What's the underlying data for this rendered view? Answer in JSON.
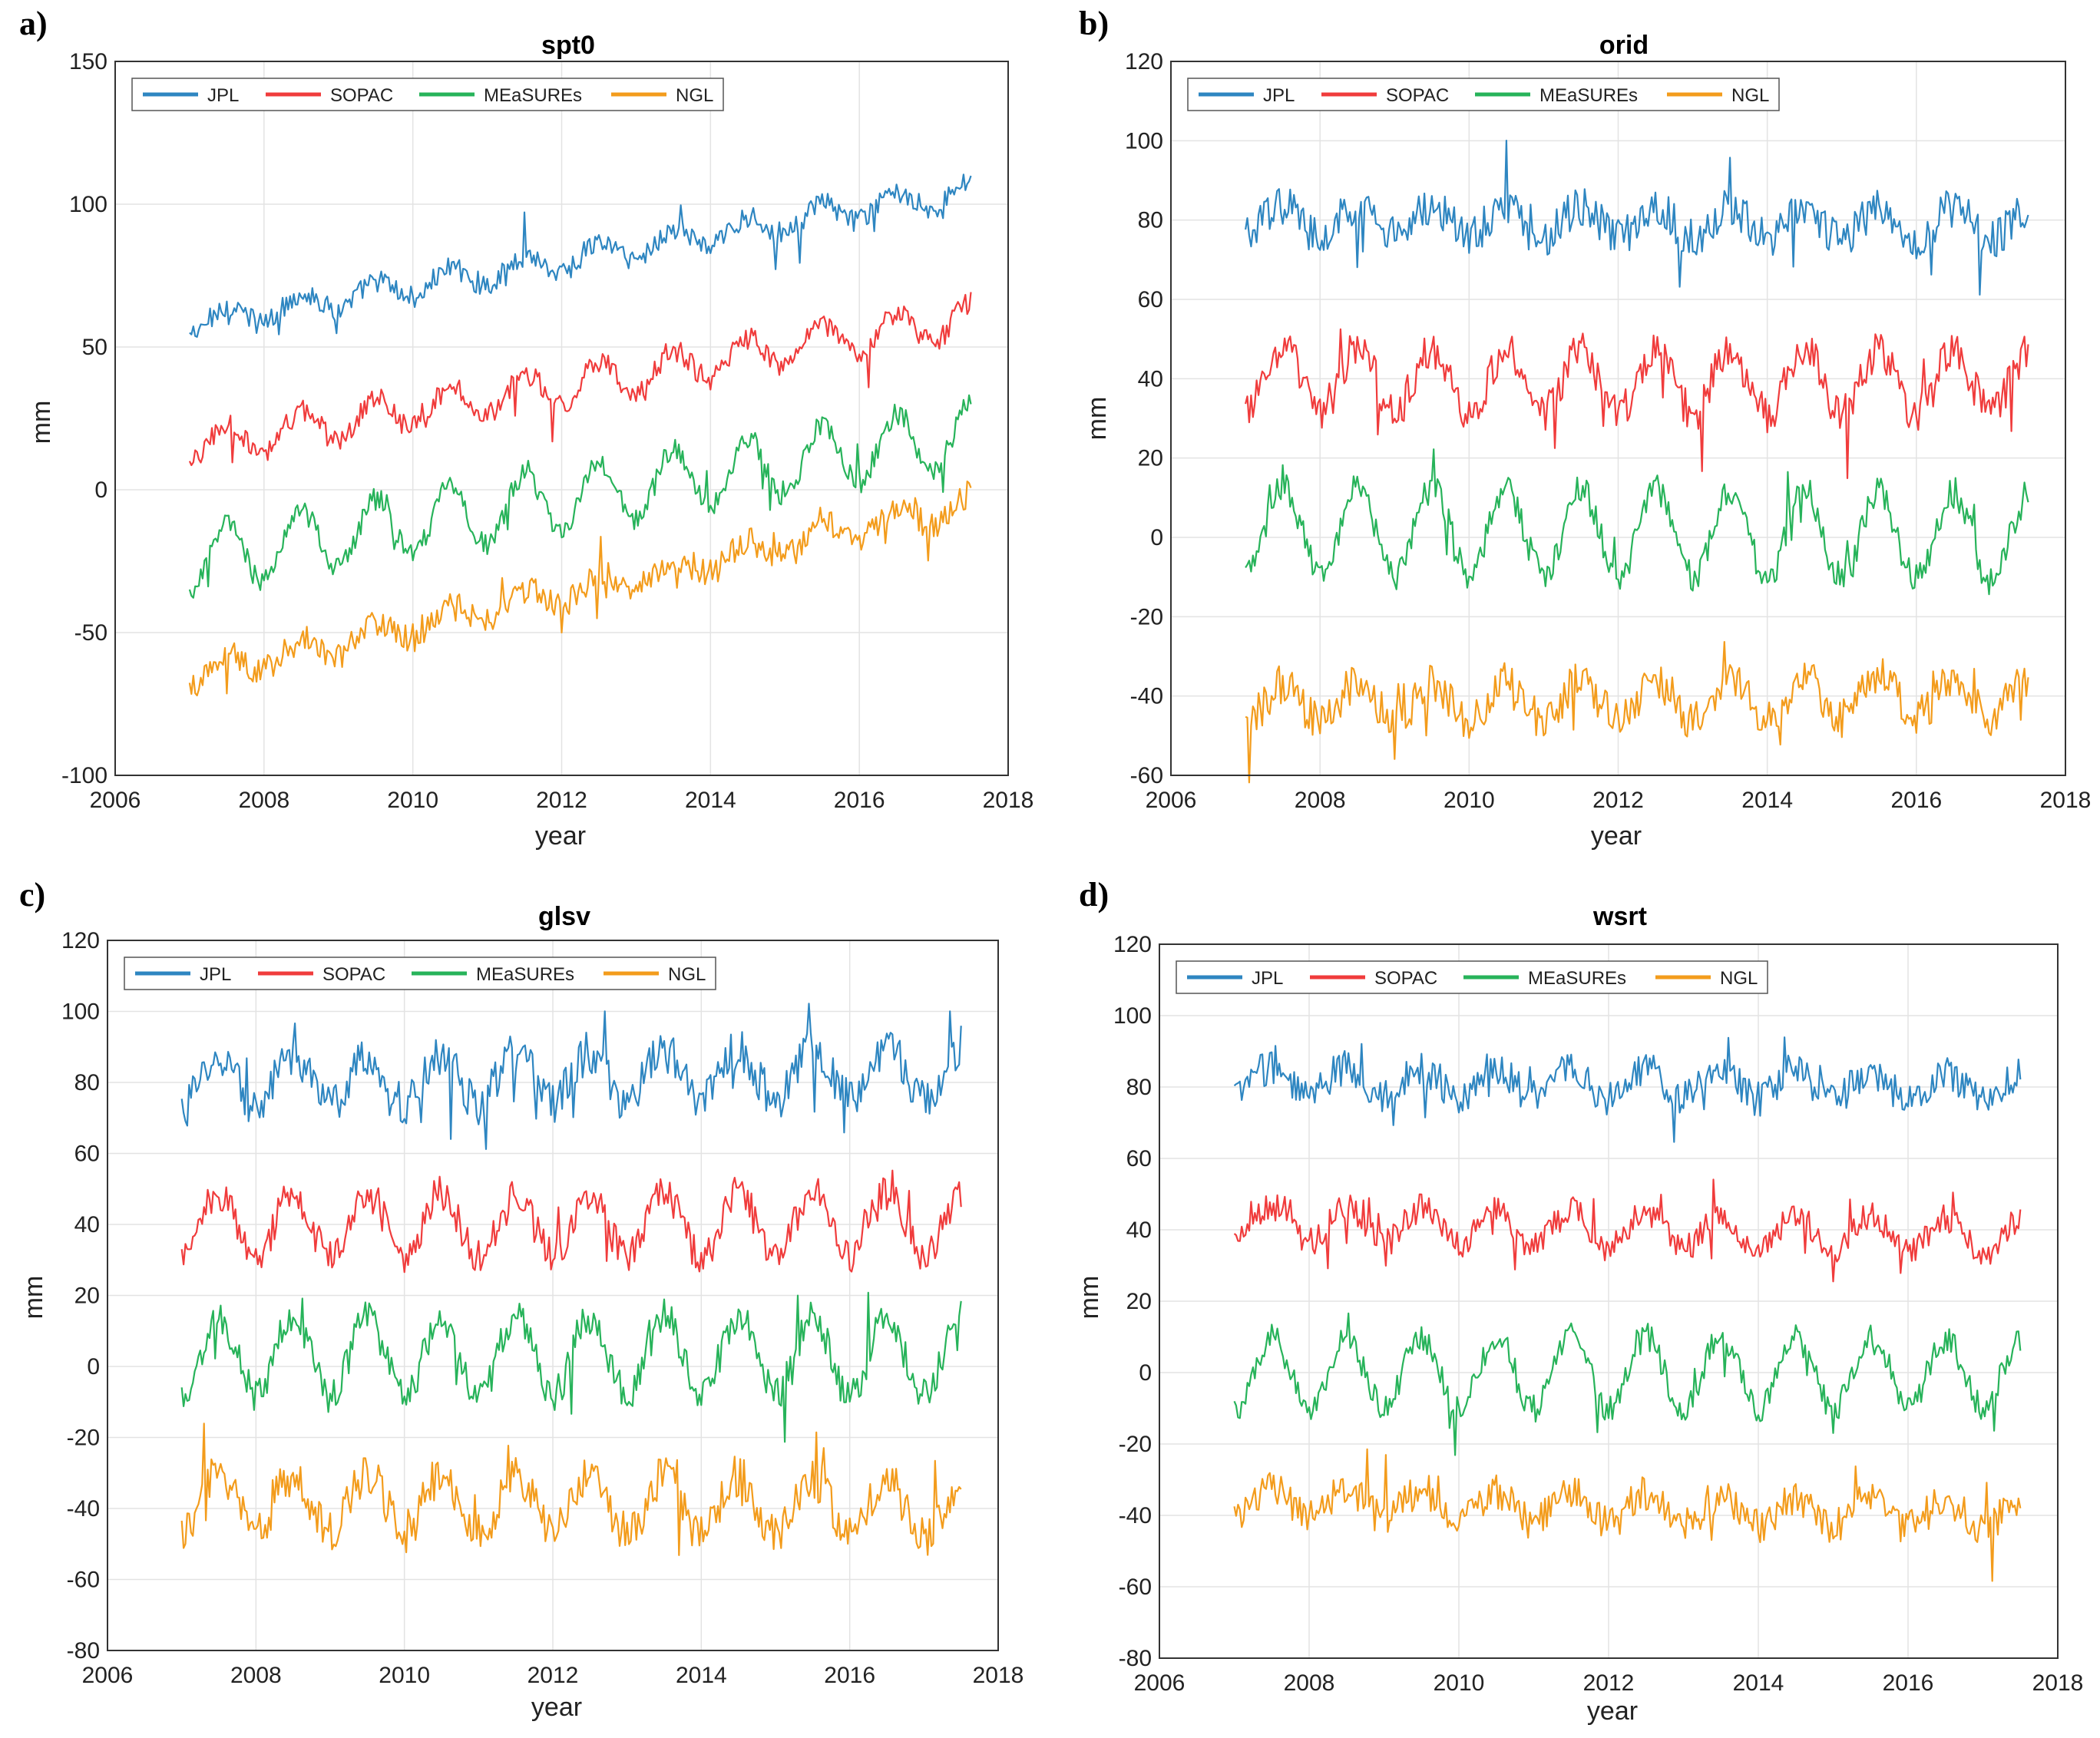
{
  "figure": {
    "colors": {
      "JPL": "#2e86c1",
      "SOPAC": "#f03c3c",
      "MEaSUREs": "#27b35a",
      "NGL": "#f39c1c"
    },
    "legend": [
      "JPL",
      "SOPAC",
      "MEaSUREs",
      "NGL"
    ]
  },
  "chart_data": [
    {
      "panel": "a)",
      "type": "line",
      "title": "spt0",
      "xlabel": "year",
      "ylabel": "mm",
      "xlim": [
        2006,
        2018
      ],
      "ylim": [
        -100,
        150
      ],
      "xticks": [
        "2006",
        "2008",
        "2010",
        "2012",
        "2014",
        "2016",
        "2018"
      ],
      "yticks": [
        "-100",
        "-50",
        "0",
        "50",
        "100",
        "150"
      ],
      "grid": true,
      "legend_position": "top-left",
      "x_range": [
        2007.0,
        2017.5
      ],
      "series": [
        {
          "name": "JPL",
          "start": 58,
          "end": 105,
          "amplitude": 4,
          "noise": 4
        },
        {
          "name": "SOPAC",
          "start": 15,
          "end": 60,
          "amplitude": 6,
          "noise": 4
        },
        {
          "name": "MEaSUREs",
          "start": -25,
          "end": 20,
          "amplitude": 11,
          "noise": 4
        },
        {
          "name": "NGL",
          "start": -65,
          "end": -5,
          "amplitude": 4,
          "noise": 5
        }
      ]
    },
    {
      "panel": "b)",
      "type": "line",
      "title": "orid",
      "xlabel": "year",
      "ylabel": "mm",
      "xlim": [
        2006,
        2018
      ],
      "ylim": [
        -60,
        120
      ],
      "xticks": [
        "2006",
        "2008",
        "2010",
        "2012",
        "2014",
        "2016",
        "2018"
      ],
      "yticks": [
        "-60",
        "-40",
        "-20",
        "0",
        "20",
        "40",
        "60",
        "80",
        "100",
        "120"
      ],
      "grid": true,
      "legend_position": "top-left",
      "x_range": [
        2007.0,
        2017.5
      ],
      "series": [
        {
          "name": "JPL",
          "start": 80,
          "end": 79,
          "amplitude": 4,
          "noise": 5
        },
        {
          "name": "SOPAC",
          "start": 40,
          "end": 39,
          "amplitude": 8,
          "noise": 5
        },
        {
          "name": "MEaSUREs",
          "start": 2,
          "end": 0,
          "amplitude": 11,
          "noise": 4
        },
        {
          "name": "NGL",
          "start": -42,
          "end": -40,
          "amplitude": 5,
          "noise": 5
        }
      ]
    },
    {
      "panel": "c)",
      "type": "line",
      "title": "glsv",
      "xlabel": "year",
      "ylabel": "mm",
      "xlim": [
        2006,
        2018
      ],
      "ylim": [
        -80,
        120
      ],
      "xticks": [
        "2006",
        "2008",
        "2010",
        "2012",
        "2014",
        "2016",
        "2018"
      ],
      "yticks": [
        "-80",
        "-60",
        "-40",
        "-20",
        "0",
        "20",
        "40",
        "60",
        "80",
        "100",
        "120"
      ],
      "grid": true,
      "legend_position": "top-left",
      "x_range": [
        2007.0,
        2017.5
      ],
      "series": [
        {
          "name": "JPL",
          "start": 80,
          "end": 83,
          "amplitude": 7,
          "noise": 6
        },
        {
          "name": "SOPAC",
          "start": 40,
          "end": 40,
          "amplitude": 9,
          "noise": 5
        },
        {
          "name": "MEaSUREs",
          "start": 3,
          "end": 3,
          "amplitude": 11,
          "noise": 5
        },
        {
          "name": "NGL",
          "start": -38,
          "end": -40,
          "amplitude": 8,
          "noise": 6
        }
      ]
    },
    {
      "panel": "d)",
      "type": "line",
      "title": "wsrt",
      "xlabel": "year",
      "ylabel": "mm",
      "xlim": [
        2006,
        2018
      ],
      "ylim": [
        -80,
        120
      ],
      "xticks": [
        "2006",
        "2008",
        "2010",
        "2012",
        "2014",
        "2016",
        "2018"
      ],
      "yticks": [
        "-80",
        "-60",
        "-40",
        "-20",
        "0",
        "20",
        "40",
        "60",
        "80",
        "100",
        "120"
      ],
      "grid": true,
      "legend_position": "top-left",
      "x_range": [
        2007.0,
        2017.5
      ],
      "series": [
        {
          "name": "JPL",
          "start": 82,
          "end": 80,
          "amplitude": 4,
          "noise": 5
        },
        {
          "name": "SOPAC",
          "start": 42,
          "end": 38,
          "amplitude": 5,
          "noise": 4
        },
        {
          "name": "MEaSUREs",
          "start": 0,
          "end": 0,
          "amplitude": 10,
          "noise": 4
        },
        {
          "name": "NGL",
          "start": -36,
          "end": -40,
          "amplitude": 4,
          "noise": 5
        }
      ]
    }
  ]
}
